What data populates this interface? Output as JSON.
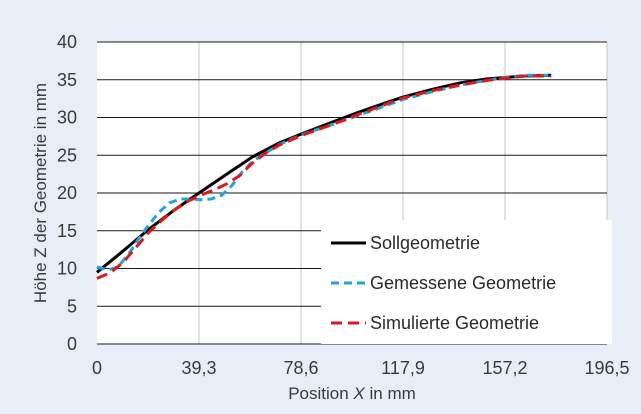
{
  "chart_data": {
    "type": "line",
    "xlabel_parts": [
      "Position ",
      "X",
      " in mm"
    ],
    "ylabel": "Höhe  Z der Geometrie in mm",
    "xlim": [
      0,
      196.5
    ],
    "ylim": [
      0,
      40
    ],
    "x_ticks": [
      0,
      39.3,
      78.6,
      117.9,
      157.2,
      196.5
    ],
    "x_tick_labels": [
      "0",
      "39,3",
      "78,6",
      "117,9",
      "157,2",
      "196,5"
    ],
    "y_ticks": [
      0,
      5,
      10,
      15,
      20,
      25,
      30,
      35,
      40
    ],
    "y_tick_labels": [
      "0",
      "5",
      "10",
      "15",
      "20",
      "25",
      "30",
      "35",
      "40"
    ],
    "grid": true,
    "legend_position": "bottom-right",
    "series": [
      {
        "name": "Sollgeometrie",
        "color": "#000000",
        "style": "solid",
        "points": [
          [
            0,
            9.5
          ],
          [
            10,
            12.3
          ],
          [
            20,
            15.2
          ],
          [
            30,
            17.8
          ],
          [
            39.3,
            20
          ],
          [
            50,
            22.5
          ],
          [
            60,
            24.8
          ],
          [
            70,
            26.6
          ],
          [
            78.6,
            27.8
          ],
          [
            90,
            29.3
          ],
          [
            100,
            30.6
          ],
          [
            110,
            31.8
          ],
          [
            117.9,
            32.7
          ],
          [
            130,
            33.8
          ],
          [
            140,
            34.6
          ],
          [
            150,
            35.1
          ],
          [
            157.2,
            35.3
          ],
          [
            165,
            35.5
          ],
          [
            175,
            35.6
          ]
        ]
      },
      {
        "name": "Gemessene Geometrie",
        "color": "#1ea5e0",
        "style": "dashed",
        "points": [
          [
            0,
            10.2
          ],
          [
            4,
            9.8
          ],
          [
            8,
            10.2
          ],
          [
            12,
            11.8
          ],
          [
            16,
            13.9
          ],
          [
            20,
            15.8
          ],
          [
            24,
            17.5
          ],
          [
            28,
            18.7
          ],
          [
            32,
            19.2
          ],
          [
            36,
            19.2
          ],
          [
            40,
            19.1
          ],
          [
            44,
            19.2
          ],
          [
            48,
            19.7
          ],
          [
            52,
            21
          ],
          [
            56,
            22.8
          ],
          [
            60,
            24.2
          ],
          [
            65,
            25.3
          ],
          [
            70,
            26.4
          ],
          [
            78.6,
            27.7
          ],
          [
            90,
            29
          ],
          [
            100,
            30.2
          ],
          [
            110,
            31.4
          ],
          [
            117.9,
            32.4
          ],
          [
            130,
            33.5
          ],
          [
            140,
            34.3
          ],
          [
            150,
            34.9
          ],
          [
            157.2,
            35.3
          ],
          [
            165,
            35.6
          ],
          [
            175,
            35.6
          ]
        ]
      },
      {
        "name": "Simulierte Geometrie",
        "color": "#e01818",
        "style": "dashed",
        "points": [
          [
            0,
            8.7
          ],
          [
            5,
            9.4
          ],
          [
            10,
            10.8
          ],
          [
            15,
            12.8
          ],
          [
            20,
            14.8
          ],
          [
            25,
            16.4
          ],
          [
            30,
            17.8
          ],
          [
            35,
            18.9
          ],
          [
            39.3,
            19.6
          ],
          [
            45,
            20.4
          ],
          [
            50,
            21.2
          ],
          [
            55,
            22.3
          ],
          [
            60,
            24
          ],
          [
            65,
            25.3
          ],
          [
            70,
            26.3
          ],
          [
            78.6,
            27.6
          ],
          [
            90,
            29
          ],
          [
            100,
            30.3
          ],
          [
            110,
            31.6
          ],
          [
            117.9,
            32.6
          ],
          [
            130,
            33.6
          ],
          [
            140,
            34.3
          ],
          [
            150,
            34.9
          ],
          [
            157.2,
            35.2
          ],
          [
            165,
            35.5
          ],
          [
            175,
            35.5
          ]
        ]
      }
    ]
  }
}
